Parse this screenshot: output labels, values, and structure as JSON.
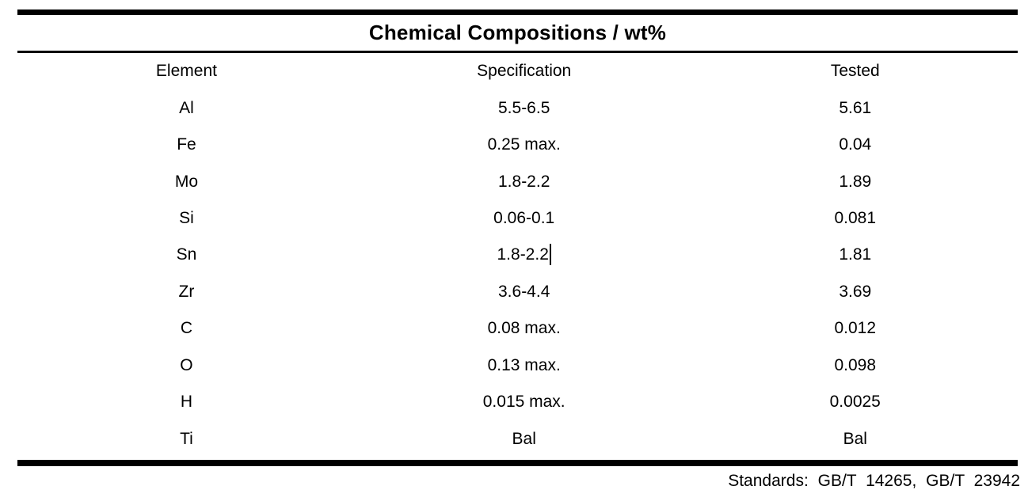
{
  "page": {
    "title": "Chemical Compositions / wt%",
    "columns": {
      "element": "Element",
      "specification": "Specification",
      "tested": "Tested"
    },
    "rows": [
      {
        "element": "Al",
        "specification": "5.5-6.5",
        "tested": "5.61"
      },
      {
        "element": "Fe",
        "specification": "0.25 max.",
        "tested": "0.04"
      },
      {
        "element": "Mo",
        "specification": "1.8-2.2",
        "tested": "1.89"
      },
      {
        "element": "Si",
        "specification": "0.06-0.1",
        "tested": "0.081"
      },
      {
        "element": "Sn",
        "specification": "1.8-2.2",
        "tested": "1.81"
      },
      {
        "element": "Zr",
        "specification": "3.6-4.4",
        "tested": "3.69"
      },
      {
        "element": "C",
        "specification": "0.08 max.",
        "tested": "0.012"
      },
      {
        "element": "O",
        "specification": "0.13 max.",
        "tested": "0.098"
      },
      {
        "element": "H",
        "specification": "0.015 max.",
        "tested": "0.0025"
      },
      {
        "element": "Ti",
        "specification": "Bal",
        "tested": "Bal"
      }
    ],
    "caret": {
      "row": "Sn",
      "column": "specification",
      "after_text": "1.8-2.2"
    },
    "footer": {
      "standards": "Standards: GB/T 14265, GB/T 23942"
    },
    "colors": {
      "text": "#000000",
      "background": "#ffffff",
      "rule": "#000000"
    }
  }
}
